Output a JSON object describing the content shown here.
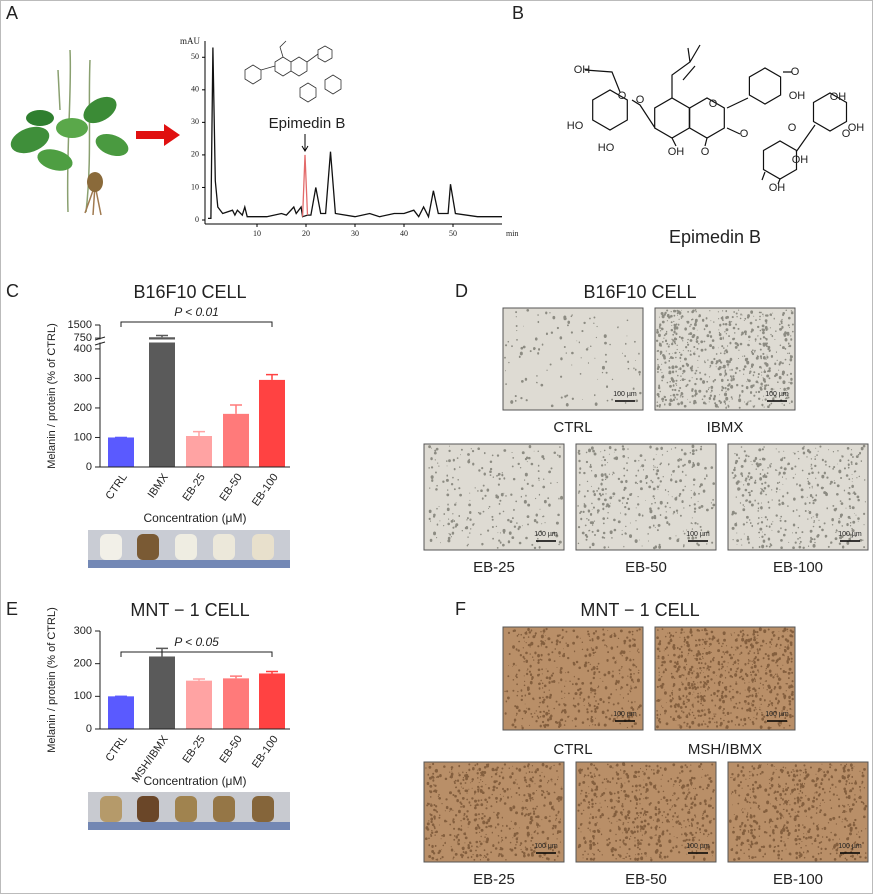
{
  "panel_labels": [
    "A",
    "B",
    "C",
    "D",
    "E",
    "F"
  ],
  "structure": {
    "name": "Epimedin B",
    "labels": [
      "O",
      "OH",
      "O",
      "O",
      "HO",
      "HO",
      "OH",
      "O",
      "O",
      "O",
      "OH",
      "OH",
      "O",
      "OH",
      "OH",
      "O",
      "OH"
    ]
  },
  "micrographs": [
    {
      "title": "B16F10 CELL",
      "images": [
        {
          "caption": "CTRL",
          "scale_label": "100 µm"
        },
        {
          "caption": "IBMX",
          "scale_label": "100 µm"
        },
        {
          "caption": "EB-25",
          "scale_label": "100 µm"
        },
        {
          "caption": "EB-50",
          "scale_label": "100 µm"
        },
        {
          "caption": "EB-100",
          "scale_label": "100 µm"
        }
      ]
    },
    {
      "title": "MNT − 1 CELL",
      "images": [
        {
          "caption": "CTRL",
          "scale_label": "100 µm"
        },
        {
          "caption": "MSH/IBMX",
          "scale_label": "100 µm"
        },
        {
          "caption": "EB-25",
          "scale_label": "100 µm"
        },
        {
          "caption": "EB-50",
          "scale_label": "100 µm"
        },
        {
          "caption": "EB-100",
          "scale_label": "100 µm"
        }
      ]
    }
  ],
  "chart_data": [
    {
      "type": "line",
      "ylabel": "mAU",
      "xlabel": "min",
      "annotation": "Epimedin B",
      "xlim": [
        0,
        60
      ],
      "ylim": [
        0,
        55
      ],
      "xticks": [
        10,
        20,
        30,
        40,
        50
      ],
      "yticks": [
        0,
        10,
        20,
        30,
        40,
        50
      ],
      "series": [
        {
          "color": "#111111",
          "x": [
            0,
            0.6,
            1,
            1.5,
            2,
            3,
            5,
            5.5,
            6,
            7,
            7.5,
            8,
            12,
            15,
            16,
            17.5,
            18,
            19,
            19.3,
            20.3,
            21,
            22,
            23,
            24,
            25,
            26,
            30,
            33,
            35,
            38,
            40,
            42,
            43,
            44,
            45,
            46,
            47,
            49,
            49.5,
            50.5,
            55,
            60
          ],
          "values": [
            0.5,
            0.5,
            53,
            12,
            4,
            2,
            3,
            1.5,
            3,
            1.5,
            4,
            1,
            1,
            2,
            1.5,
            4,
            2,
            4,
            1,
            1.5,
            1.5,
            10,
            2,
            2,
            21,
            2,
            1,
            2,
            1,
            2,
            2,
            3,
            1,
            4,
            1,
            9,
            2,
            2,
            11,
            2,
            1,
            1
          ]
        },
        {
          "color": "#e36a6a",
          "x": [
            19.3,
            19.8,
            20.3
          ],
          "values": [
            1,
            20,
            1.5
          ]
        }
      ]
    },
    {
      "type": "bar",
      "title": "B16F10 CELL",
      "ylabel": "Melanin / protein (% of CTRL)",
      "xlabel": "Concentration (μM)",
      "annotation": "P < 0.01",
      "categories": [
        "CTRL",
        "IBMX",
        "EB-25",
        "EB-50",
        "EB-100"
      ],
      "values": [
        100,
        800,
        105,
        180,
        295
      ],
      "errors": [
        0,
        100,
        15,
        30,
        18
      ],
      "colors": [
        "#5a5aff",
        "#5a5a5a",
        "#ffa3a3",
        "#ff7a7a",
        "#ff4242"
      ],
      "ylim": [
        0,
        1500
      ],
      "ybreak": [
        420,
        700
      ],
      "yticks": [
        0,
        100,
        200,
        300,
        400,
        750,
        1500
      ]
    },
    {
      "type": "bar",
      "title": "MNT − 1 CELL",
      "ylabel": "Melanin / protein (% of CTRL)",
      "xlabel": "Concentration (μM)",
      "annotation": "P < 0.05",
      "categories": [
        "CTRL",
        "MSH/IBMX",
        "EB-25",
        "EB-50",
        "EB-100"
      ],
      "values": [
        100,
        222,
        148,
        155,
        170
      ],
      "errors": [
        0,
        25,
        5,
        7,
        6
      ],
      "colors": [
        "#5a5aff",
        "#5a5a5a",
        "#ffa3a3",
        "#ff7a7a",
        "#ff4242"
      ],
      "ylim": [
        0,
        300
      ],
      "yticks": [
        0,
        100,
        200,
        300
      ]
    }
  ]
}
